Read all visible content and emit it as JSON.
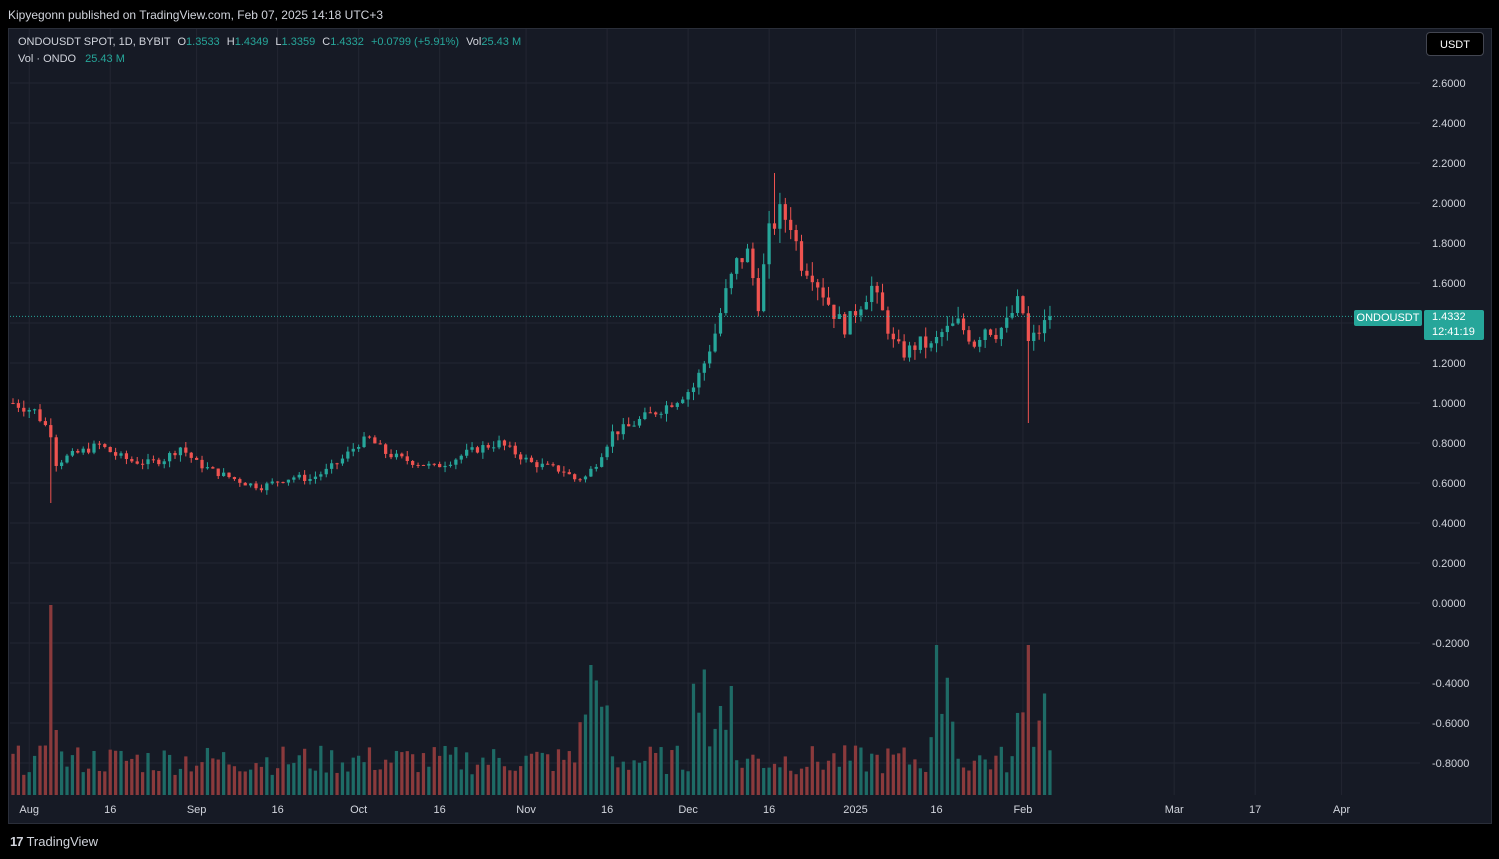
{
  "header": {
    "publisher_text": "Kipyegonn published on TradingView.com, Feb 07, 2025 14:18 UTC+3"
  },
  "legend": {
    "symbol": "ONDOUSDT SPOT, 1D, BYBIT",
    "open_label": "O",
    "open": "1.3533",
    "high_label": "H",
    "high": "1.4349",
    "low_label": "L",
    "low": "1.3359",
    "close_label": "C",
    "close": "1.4332",
    "change": "+0.0799 (+5.91%)",
    "vol_label": "Vol",
    "vol": "25.43 M",
    "vol_series_label": "Vol · ONDO",
    "vol_series_value": "25.43 M"
  },
  "toolbar": {
    "currency": "USDT"
  },
  "last_price": {
    "symbol": "ONDOUSDT",
    "value": "1.4332",
    "countdown": "12:41:19"
  },
  "footer": {
    "brand": "TradingView",
    "brand_mark": "17"
  },
  "colors": {
    "up": "#26a69a",
    "down": "#ef5350",
    "background": "#161a25",
    "grid": "#232632",
    "text": "#d1d4dc"
  },
  "chart_data": {
    "type": "candlestick",
    "title": "ONDOUSDT SPOT, 1D, BYBIT",
    "ylim": [
      -0.9,
      2.7
    ],
    "y_ticks": [
      "2.6000",
      "2.4000",
      "2.2000",
      "2.0000",
      "1.8000",
      "1.6000",
      "1.4000",
      "1.2000",
      "1.0000",
      "0.8000",
      "0.6000",
      "0.4000",
      "0.2000",
      "0.0000",
      "-0.2000",
      "-0.4000",
      "-0.6000",
      "-0.8000"
    ],
    "y_tick_values": [
      2.6,
      2.4,
      2.2,
      2.0,
      1.8,
      1.6,
      1.4,
      1.2,
      1.0,
      0.8,
      0.6,
      0.4,
      0.2,
      0.0,
      -0.2,
      -0.4,
      -0.6,
      -0.8
    ],
    "x_ticks": [
      "Aug",
      "16",
      "Sep",
      "16",
      "Oct",
      "16",
      "Nov",
      "16",
      "Dec",
      "16",
      "2025",
      "16",
      "Feb",
      "Mar",
      "17",
      "Apr"
    ],
    "x_tick_days": [
      3,
      18,
      34,
      49,
      64,
      79,
      95,
      110,
      125,
      140,
      156,
      171,
      187,
      215,
      230,
      246
    ],
    "start_day": 0,
    "end_day_visible": 262,
    "close_path_points": [
      [
        0,
        1.0
      ],
      [
        4,
        0.96
      ],
      [
        7,
        0.85
      ],
      [
        8,
        0.7
      ],
      [
        10,
        0.73
      ],
      [
        13,
        0.76
      ],
      [
        16,
        0.79
      ],
      [
        19,
        0.74
      ],
      [
        22,
        0.71
      ],
      [
        25,
        0.7
      ],
      [
        28,
        0.72
      ],
      [
        31,
        0.78
      ],
      [
        34,
        0.7
      ],
      [
        37,
        0.66
      ],
      [
        40,
        0.63
      ],
      [
        43,
        0.6
      ],
      [
        46,
        0.58
      ],
      [
        49,
        0.61
      ],
      [
        52,
        0.63
      ],
      [
        55,
        0.62
      ],
      [
        58,
        0.66
      ],
      [
        61,
        0.72
      ],
      [
        64,
        0.8
      ],
      [
        66,
        0.82
      ],
      [
        69,
        0.75
      ],
      [
        72,
        0.72
      ],
      [
        75,
        0.7
      ],
      [
        78,
        0.68
      ],
      [
        81,
        0.71
      ],
      [
        84,
        0.75
      ],
      [
        87,
        0.78
      ],
      [
        90,
        0.8
      ],
      [
        93,
        0.75
      ],
      [
        96,
        0.7
      ],
      [
        99,
        0.68
      ],
      [
        102,
        0.66
      ],
      [
        104,
        0.62
      ],
      [
        106,
        0.63
      ],
      [
        108,
        0.7
      ],
      [
        111,
        0.85
      ],
      [
        114,
        0.88
      ],
      [
        117,
        0.93
      ],
      [
        120,
        0.97
      ],
      [
        123,
        1.02
      ],
      [
        126,
        1.08
      ],
      [
        128,
        1.2
      ],
      [
        130,
        1.35
      ],
      [
        132,
        1.55
      ],
      [
        134,
        1.7
      ],
      [
        136,
        1.75
      ],
      [
        138,
        1.5
      ],
      [
        140,
        1.85
      ],
      [
        142,
        1.95
      ],
      [
        144,
        1.9
      ],
      [
        146,
        1.7
      ],
      [
        148,
        1.65
      ],
      [
        150,
        1.55
      ],
      [
        152,
        1.45
      ],
      [
        154,
        1.38
      ],
      [
        157,
        1.5
      ],
      [
        159,
        1.58
      ],
      [
        161,
        1.45
      ],
      [
        163,
        1.3
      ],
      [
        165,
        1.25
      ],
      [
        168,
        1.3
      ],
      [
        170,
        1.28
      ],
      [
        172,
        1.35
      ],
      [
        175,
        1.4
      ],
      [
        178,
        1.3
      ],
      [
        180,
        1.38
      ],
      [
        182,
        1.35
      ],
      [
        184,
        1.4
      ],
      [
        186,
        1.5
      ],
      [
        187,
        1.45
      ],
      [
        188,
        1.3
      ],
      [
        190,
        1.36
      ],
      [
        192,
        1.43
      ]
    ],
    "volume": {
      "name": "Vol · ONDO",
      "last": "25.43 M"
    },
    "note": "Daily candles Jul 29, 2024 – Feb 07, 2025; lows near 0.50 (Aug 5) and 0.90 (Feb 3), high near 2.15 (Dec 15). Volume histogram overlaid at bottom."
  }
}
